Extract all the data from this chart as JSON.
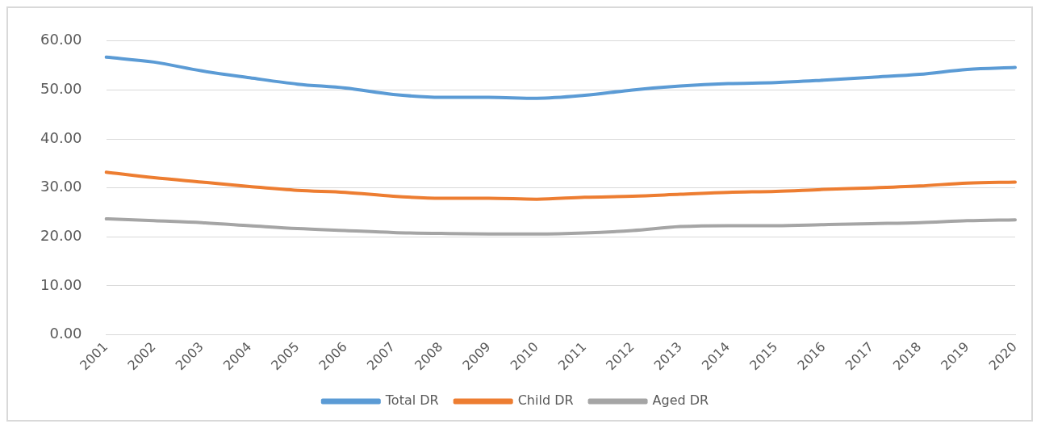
{
  "chart_data": {
    "type": "line",
    "categories": [
      "2001",
      "2002",
      "2003",
      "2004",
      "2005",
      "2006",
      "2007",
      "2008",
      "2009",
      "2010",
      "2011",
      "2012",
      "2013",
      "2014",
      "2015",
      "2016",
      "2017",
      "2018",
      "2019",
      "2020"
    ],
    "series": [
      {
        "name": "Total DR",
        "color": "#5b9bd5",
        "values": [
          56.7,
          55.7,
          53.9,
          52.5,
          51.2,
          50.4,
          49.1,
          48.5,
          48.5,
          48.3,
          48.9,
          50.0,
          50.8,
          51.3,
          51.5,
          52.0,
          52.6,
          53.2,
          54.2,
          54.6
        ]
      },
      {
        "name": "Child DR",
        "color": "#ed7d31",
        "values": [
          33.2,
          32.1,
          31.2,
          30.3,
          29.5,
          29.1,
          28.3,
          27.9,
          27.9,
          27.7,
          28.1,
          28.3,
          28.7,
          29.1,
          29.3,
          29.7,
          30.0,
          30.4,
          31.0,
          31.2
        ]
      },
      {
        "name": "Aged DR",
        "color": "#a5a5a5",
        "values": [
          23.7,
          23.3,
          22.9,
          22.3,
          21.7,
          21.3,
          20.9,
          20.7,
          20.6,
          20.6,
          20.8,
          21.3,
          22.1,
          22.3,
          22.3,
          22.5,
          22.7,
          22.9,
          23.3,
          23.5
        ]
      }
    ],
    "ylim": [
      0,
      60
    ],
    "yticks": [
      {
        "value": 0,
        "label": "0.00"
      },
      {
        "value": 10,
        "label": "10.00"
      },
      {
        "value": 20,
        "label": "20.00"
      },
      {
        "value": 30,
        "label": "30.00"
      },
      {
        "value": 40,
        "label": "40.00"
      },
      {
        "value": 50,
        "label": "50.00"
      },
      {
        "value": 60,
        "label": "60.00"
      }
    ],
    "grid": "y",
    "legend": "bottom",
    "marker": "none",
    "line_style": "solid"
  }
}
